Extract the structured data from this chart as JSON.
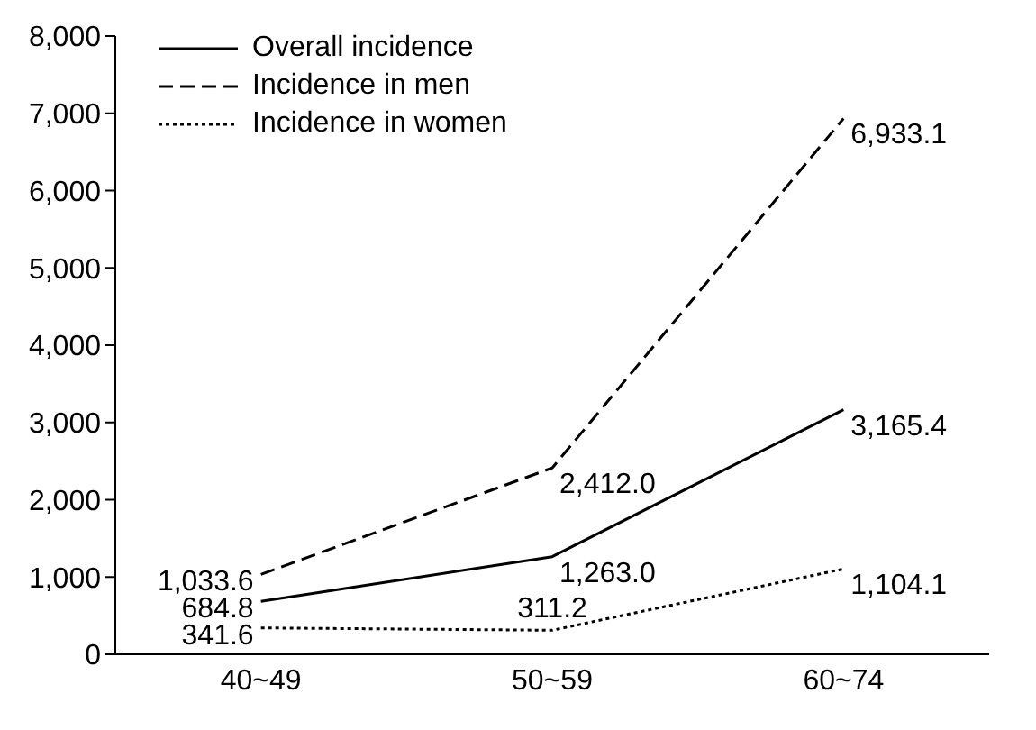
{
  "chart_data": {
    "type": "line",
    "categories": [
      "40~49",
      "50~59",
      "60~74"
    ],
    "series": [
      {
        "name": "Overall incidence",
        "color": "#000000",
        "line_style": "solid",
        "values": [
          684.8,
          1263.0,
          3165.4
        ],
        "value_labels": [
          "684.8",
          "1,263.0",
          "3,165.4"
        ]
      },
      {
        "name": "Incidence in men",
        "color": "#000000",
        "line_style": "dashed",
        "values": [
          1033.6,
          2412.0,
          6933.1
        ],
        "value_labels": [
          "1,033.6",
          "2,412.0",
          "6,933.1"
        ]
      },
      {
        "name": "Incidence in women",
        "color": "#000000",
        "line_style": "dotted",
        "values": [
          341.6,
          311.2,
          1104.1
        ],
        "value_labels": [
          "341.6",
          "311.2",
          "1,104.1"
        ]
      }
    ],
    "ylim": [
      0,
      8000
    ],
    "yticks": [
      {
        "value": 0,
        "label": "0"
      },
      {
        "value": 1000,
        "label": "1,000"
      },
      {
        "value": 2000,
        "label": "2,000"
      },
      {
        "value": 3000,
        "label": "3,000"
      },
      {
        "value": 4000,
        "label": "4,000"
      },
      {
        "value": 5000,
        "label": "5,000"
      },
      {
        "value": 6000,
        "label": "6,000"
      },
      {
        "value": 7000,
        "label": "7,000"
      },
      {
        "value": 8000,
        "label": "8,000"
      }
    ],
    "grid": false,
    "legend": "top left",
    "marker": "none"
  }
}
